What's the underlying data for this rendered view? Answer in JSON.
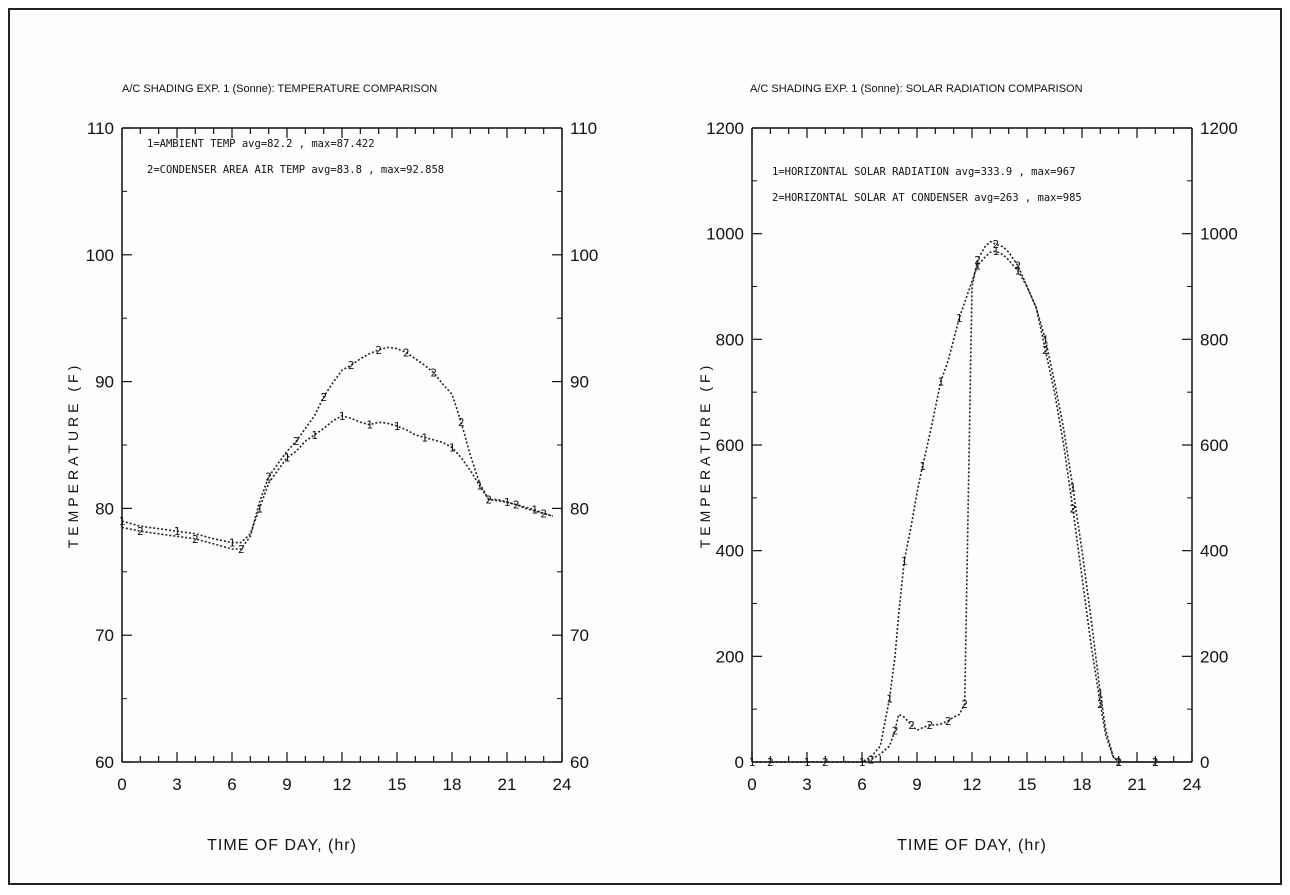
{
  "chart_data": [
    {
      "type": "line",
      "title": "A/C SHADING EXP. 1 (Sonne): TEMPERATURE COMPARISON",
      "xlabel": "TIME OF DAY, (hr)",
      "ylabel": "TEMPERATURE (F)",
      "xlim": [
        0,
        24
      ],
      "ylim": [
        60,
        110
      ],
      "xticks": [
        "0",
        "3",
        "6",
        "9",
        "12",
        "15",
        "18",
        "21",
        "24"
      ],
      "yticks": [
        "60",
        "70",
        "80",
        "90",
        "100",
        "110"
      ],
      "legend": [
        "1=AMBIENT TEMP avg=82.2 ,  max=87.422",
        "2=CONDENSER AREA AIR TEMP avg=83.8 ,  max=92.858"
      ],
      "series": [
        {
          "name": "1",
          "x": [
            0,
            1,
            2,
            3,
            4,
            5,
            6,
            6.5,
            7,
            7.5,
            8,
            8.5,
            9,
            9.5,
            10,
            10.5,
            11,
            11.5,
            12,
            12.5,
            13,
            13.5,
            14,
            14.5,
            15,
            15.5,
            16,
            16.5,
            17,
            17.5,
            18,
            18.5,
            19,
            19.5,
            20,
            20.5,
            21,
            21.5,
            22,
            22.5,
            23,
            23.5
          ],
          "y": [
            79,
            78.6,
            78.4,
            78.2,
            78,
            77.6,
            77.3,
            77.3,
            78,
            80,
            82,
            83,
            84,
            84.5,
            85.3,
            85.8,
            86.3,
            86.9,
            87.3,
            87.1,
            86.8,
            86.6,
            86.8,
            86.7,
            86.5,
            86.2,
            85.8,
            85.6,
            85.4,
            85.2,
            84.8,
            84,
            83,
            81.8,
            80.7,
            80.6,
            80.5,
            80.3,
            80.1,
            79.9,
            79.6,
            79.4
          ]
        },
        {
          "name": "2",
          "x": [
            0,
            1,
            2,
            3,
            4,
            5,
            6,
            6.5,
            7,
            7.5,
            8,
            8.5,
            9,
            9.5,
            10,
            10.5,
            11,
            11.5,
            12,
            12.5,
            13,
            13.5,
            14,
            14.5,
            15,
            15.5,
            16,
            16.5,
            17,
            17.5,
            18,
            18.5,
            19,
            19.5,
            20,
            20.5,
            21,
            21.5,
            22,
            22.5,
            23,
            23.5
          ],
          "y": [
            78.5,
            78.2,
            78,
            77.8,
            77.6,
            77.2,
            76.8,
            76.8,
            77.8,
            80.5,
            82.5,
            83.5,
            84.5,
            85.3,
            86.3,
            87.3,
            88.8,
            89.9,
            90.9,
            91.3,
            91.8,
            92.2,
            92.5,
            92.7,
            92.6,
            92.3,
            91.8,
            91.3,
            90.7,
            89.8,
            89,
            86.8,
            84.2,
            82,
            80.7,
            80.7,
            80.5,
            80.3,
            80,
            79.8,
            79.6,
            79.4
          ]
        }
      ]
    },
    {
      "type": "line",
      "title": "A/C SHADING EXP. 1 (Sonne): SOLAR RADIATION COMPARISON",
      "xlabel": "TIME OF DAY, (hr)",
      "ylabel": "TEMPERATURE (F)",
      "xlim": [
        0,
        24
      ],
      "ylim": [
        0,
        1200
      ],
      "xticks": [
        "0",
        "3",
        "6",
        "9",
        "12",
        "15",
        "18",
        "21",
        "24"
      ],
      "yticks": [
        "0",
        "200",
        "400",
        "600",
        "800",
        "1000",
        "1200"
      ],
      "legend": [
        "1=HORIZONTAL SOLAR RADIATION avg=333.9 ,  max=967",
        "2=HORIZONTAL SOLAR AT CONDENSER avg=263 ,  max=985"
      ],
      "series": [
        {
          "name": "1",
          "x": [
            0,
            1,
            2,
            3,
            4,
            5,
            6,
            6.5,
            7,
            7.5,
            7.8,
            8,
            8.3,
            8.7,
            9,
            9.3,
            9.7,
            10,
            10.3,
            10.7,
            11,
            11.3,
            11.7,
            12,
            12.3,
            12.7,
            13,
            13.3,
            13.7,
            14,
            14.5,
            15,
            15.5,
            16,
            16.5,
            17,
            17.5,
            18,
            18.5,
            19,
            19.3,
            19.7,
            20,
            20.5,
            21,
            22,
            23,
            23.5
          ],
          "y": [
            0,
            0,
            0,
            0,
            0,
            0,
            0,
            10,
            30,
            120,
            200,
            280,
            380,
            450,
            510,
            560,
            620,
            670,
            720,
            760,
            800,
            840,
            880,
            910,
            940,
            955,
            965,
            967,
            960,
            950,
            930,
            900,
            860,
            800,
            720,
            630,
            520,
            400,
            270,
            130,
            60,
            10,
            0,
            0,
            0,
            0,
            0,
            0
          ]
        },
        {
          "name": "2",
          "x": [
            0,
            1,
            2,
            3,
            4,
            5,
            6,
            6.5,
            7,
            7.5,
            7.8,
            8,
            8.3,
            8.7,
            9,
            9.3,
            9.7,
            10,
            10.3,
            10.7,
            11,
            11.3,
            11.6,
            11.8,
            12,
            12.3,
            12.7,
            13,
            13.3,
            13.7,
            14,
            14.5,
            15,
            15.5,
            16,
            16.5,
            17,
            17.5,
            18,
            18.5,
            19,
            19.3,
            19.7,
            20,
            20.5,
            21,
            22,
            23,
            23.5
          ],
          "y": [
            0,
            0,
            0,
            0,
            0,
            0,
            0,
            5,
            15,
            30,
            60,
            90,
            85,
            70,
            60,
            65,
            70,
            70,
            72,
            78,
            85,
            90,
            110,
            500,
            900,
            950,
            975,
            985,
            980,
            975,
            965,
            940,
            900,
            860,
            780,
            700,
            600,
            480,
            350,
            220,
            110,
            50,
            10,
            0,
            0,
            0,
            0,
            0,
            0
          ]
        }
      ]
    }
  ]
}
